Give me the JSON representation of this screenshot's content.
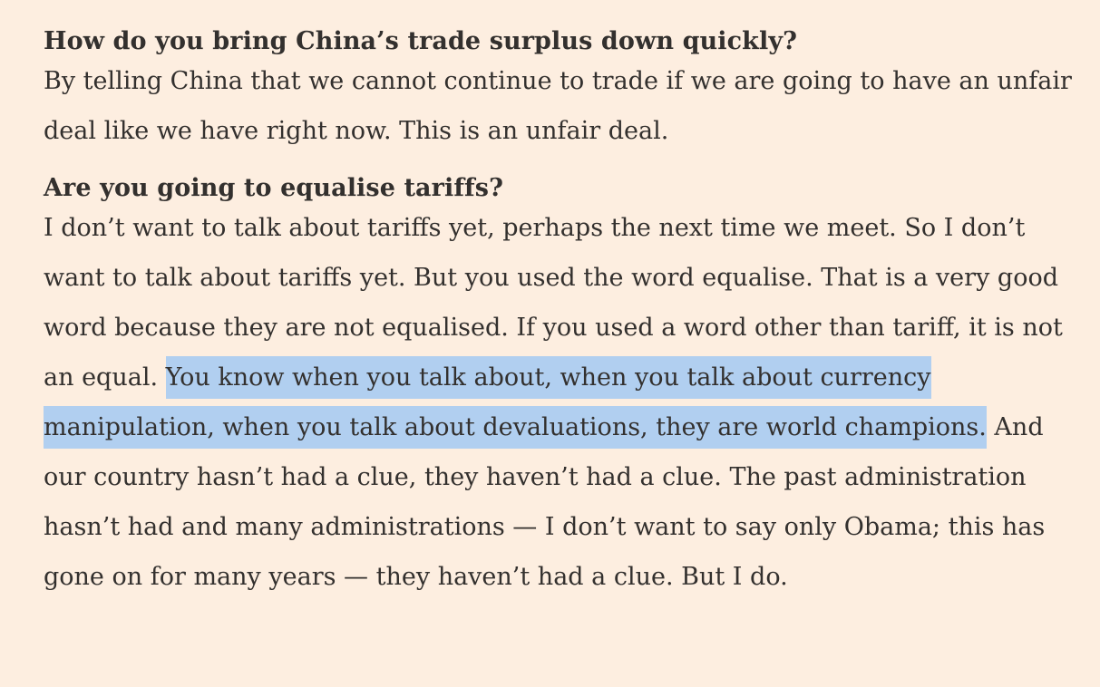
{
  "sections": [
    {
      "question": "How do you bring China’s trade surplus down quickly?",
      "answer": "By telling China that we cannot continue to trade if we are going to have an unfair deal like we have right now. This is an unfair deal."
    },
    {
      "question": "Are you going to equalise tariffs?",
      "answer_before_highlight": "I don’t want to talk about tariffs yet, perhaps the next time we meet. So I don’t want to talk about tariffs yet. But you used the word equalise. That is a very good word because they are not equalised. If you used a word other than tariff, it is not an equal. ",
      "answer_highlight": "You know when you talk about, when you talk about currency manipulation, when you talk about devaluations, they are world champions.",
      "answer_after_highlight": " And our country hasn’t had a clue, they haven’t had a clue. The past administration hasn’t had and many administrations — I don’t want to say only Obama; this has gone on for many years — they haven’t had a clue. But I do."
    }
  ],
  "colors": {
    "background": "#fdeee0",
    "text": "#33302e",
    "selection_highlight": "#b1cff0"
  }
}
